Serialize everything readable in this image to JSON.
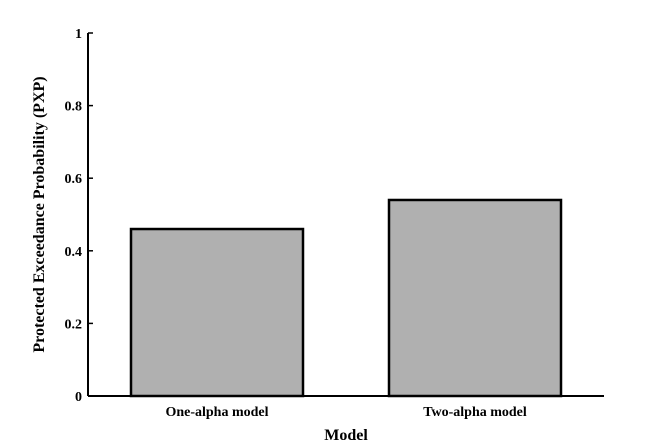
{
  "chart_data": {
    "type": "bar",
    "title": "",
    "xlabel": "Model",
    "ylabel": "Protected Exceedance Probability (PXP)",
    "categories": [
      "One-alpha model",
      "Two-alpha model"
    ],
    "values": [
      0.46,
      0.54
    ],
    "ylim": [
      0,
      1
    ],
    "yticks": [
      0,
      0.2,
      0.4,
      0.6,
      0.8,
      1
    ],
    "ytick_labels": [
      "0",
      "0.2",
      "0.4",
      "0.6",
      "0.8",
      "1"
    ],
    "grid": false,
    "legend": "none",
    "bar_color": "#b0b0b0",
    "bar_edge_color": "#000000"
  }
}
